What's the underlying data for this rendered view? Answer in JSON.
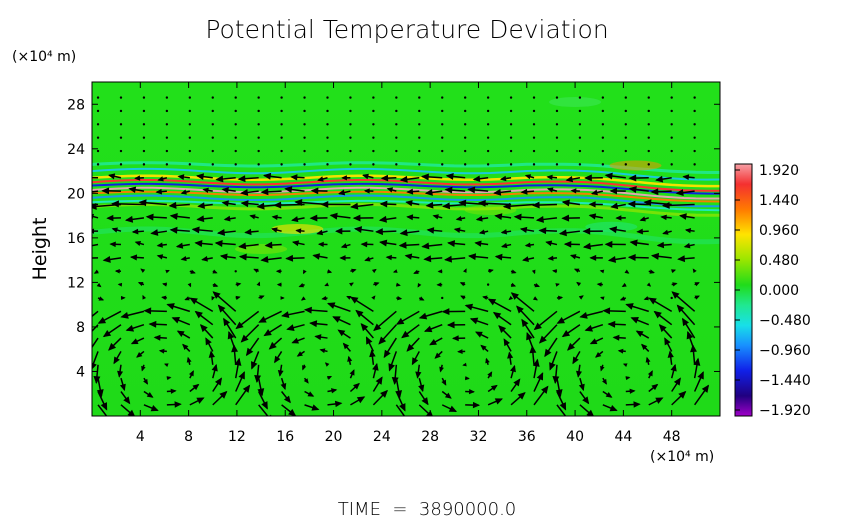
{
  "chart_data": {
    "type": "heatmap",
    "title": "Potential Temperature Deviation",
    "ylabel": "Height",
    "y_unit": "(×10⁴ m)",
    "x_unit": "(×10⁴ m)",
    "footer": "TIME  =  3890000.0",
    "x_ticks": [
      "4",
      "8",
      "12",
      "16",
      "20",
      "24",
      "28",
      "32",
      "36",
      "40",
      "44",
      "48"
    ],
    "y_ticks": [
      "4",
      "8",
      "12",
      "16",
      "20",
      "24",
      "28"
    ],
    "xlim": [
      0,
      52
    ],
    "ylim": [
      0,
      30
    ],
    "colorbar": {
      "labels": [
        "1.920",
        "1.440",
        "0.960",
        "0.480",
        "0.000",
        "−0.480",
        "−0.960",
        "−1.440",
        "−1.920"
      ],
      "range": [
        -1.92,
        1.92
      ]
    },
    "field_description": "Background near 0.000 (green); strong alternating positive/negative bands at heights ~19–22; vector field of velocity arrows with strong westward flow near heights 14–20 and circulation cells near heights 0–8"
  }
}
